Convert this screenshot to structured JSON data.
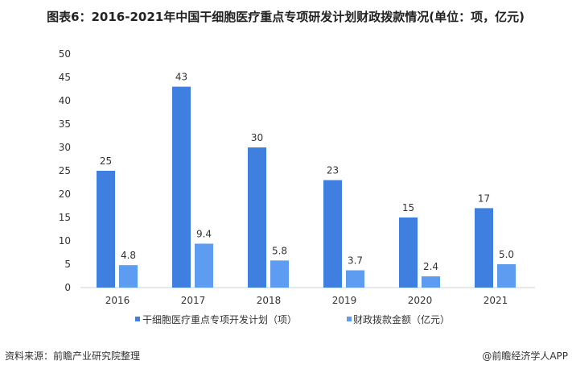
{
  "chart_data": {
    "type": "bar",
    "title": "图表6：2016-2021年中国干细胞医疗重点专项研发计划财政拨款情况(单位：项，亿元)",
    "categories": [
      "2016",
      "2017",
      "2018",
      "2019",
      "2020",
      "2021"
    ],
    "series": [
      {
        "name": "干细胞医疗重点专项开发计划（项）",
        "values": [
          25,
          43,
          30,
          23,
          15,
          17
        ],
        "labels": [
          "25",
          "43",
          "30",
          "23",
          "15",
          "17"
        ],
        "color": "#3f7fe0"
      },
      {
        "name": "财政拨款金额（亿元）",
        "values": [
          4.8,
          9.4,
          5.8,
          3.7,
          2.4,
          5.0
        ],
        "labels": [
          "4.8",
          "9.4",
          "5.8",
          "3.7",
          "2.4",
          "5.0"
        ],
        "color": "#5d9cf0"
      }
    ],
    "yticks": [
      "0",
      "5",
      "10",
      "15",
      "20",
      "25",
      "30",
      "35",
      "40",
      "45",
      "50"
    ],
    "ylim": [
      0,
      50
    ],
    "grid": false,
    "legend": "bottom",
    "xlabel": "",
    "ylabel": ""
  },
  "footer": {
    "source": "资料来源：前瞻产业研究院整理",
    "credit": "@前瞻经济学人APP"
  }
}
